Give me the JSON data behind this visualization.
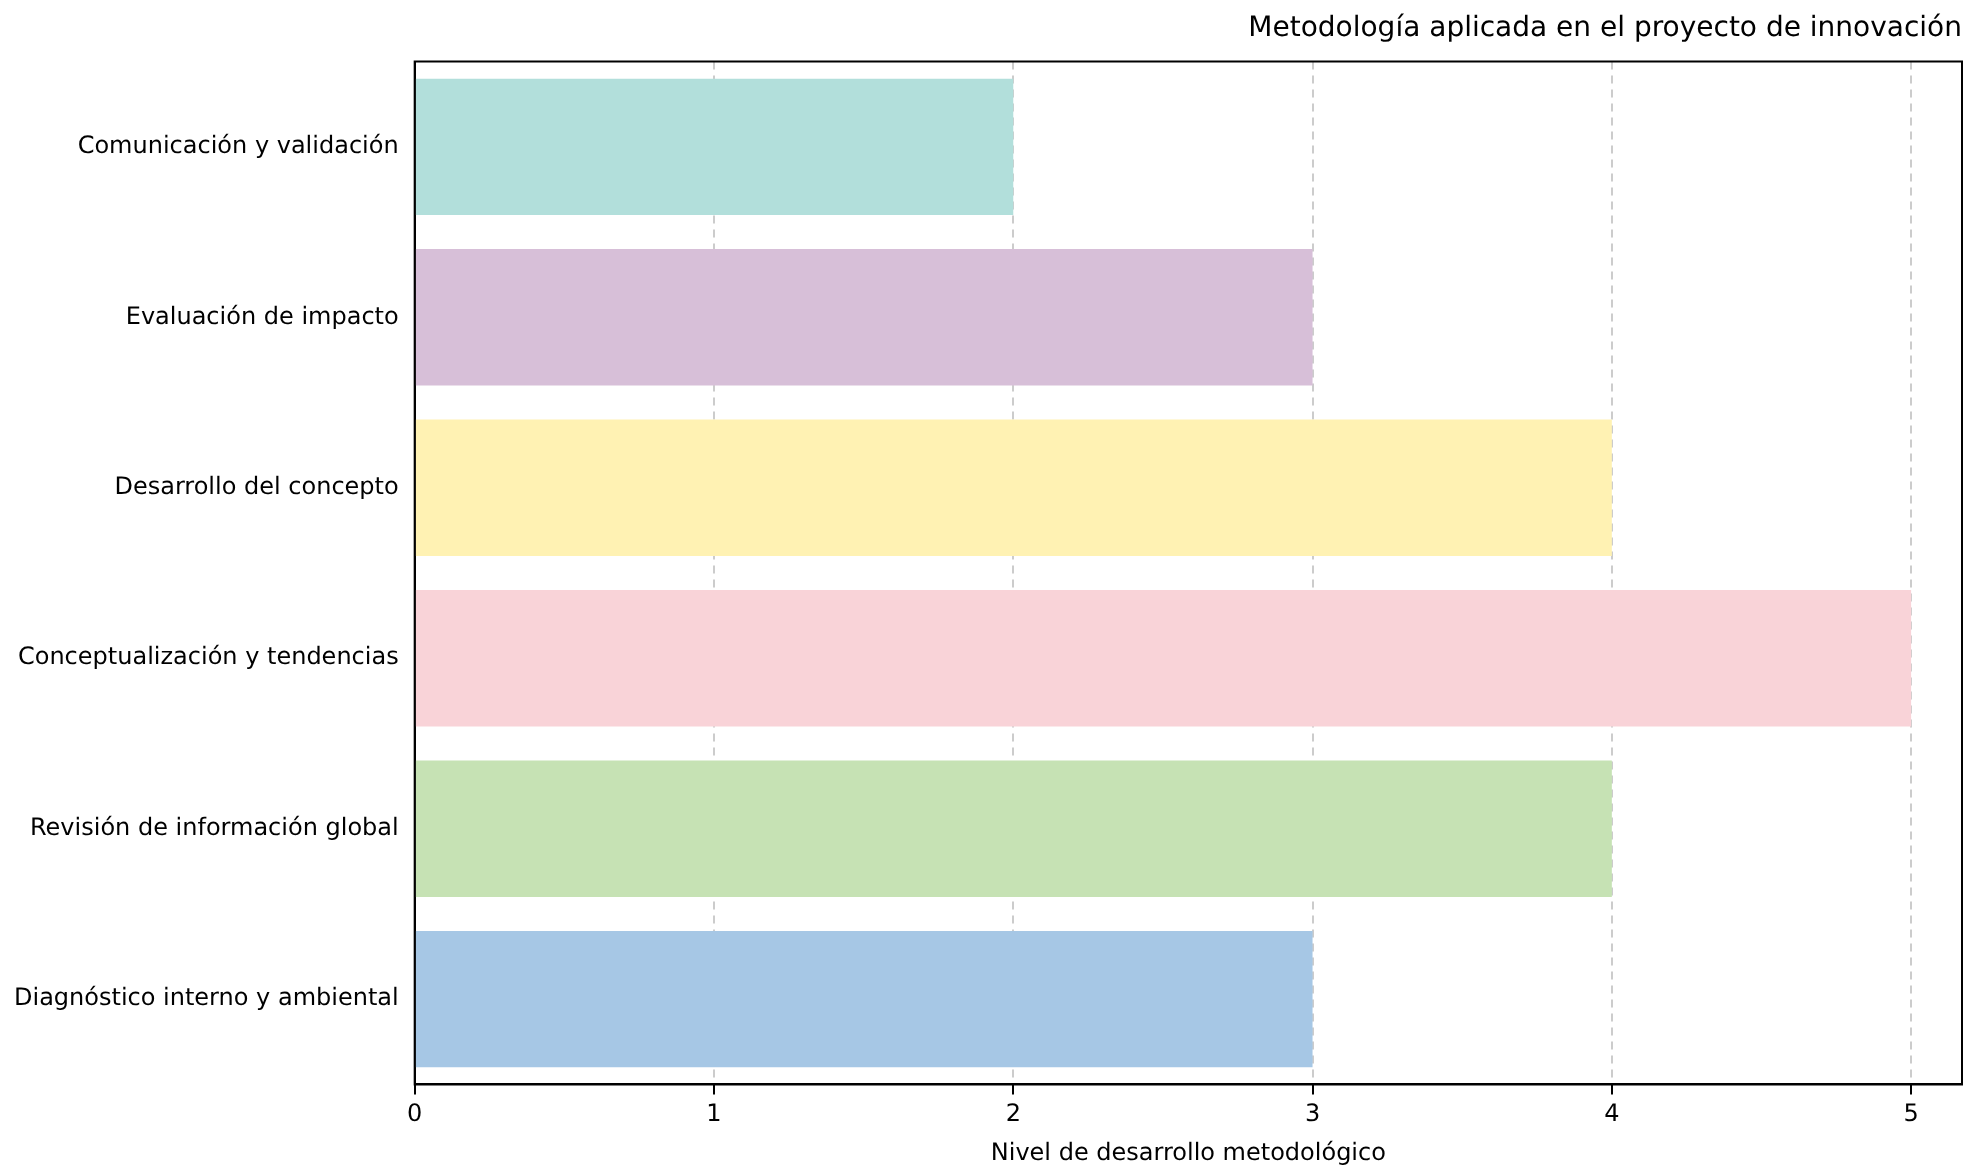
{
  "chart_data": {
    "type": "bar",
    "orientation": "horizontal",
    "title": "Metodología aplicada en el proyecto de innovación",
    "xlabel": "Nivel de desarrollo metodológico",
    "categories": [
      "Comunicación y validación",
      "Evaluación de impacto",
      "Desarrollo del concepto",
      "Conceptualización y tendencias",
      "Revisión de información global",
      "Diagnóstico interno y ambiental"
    ],
    "values": [
      2,
      3,
      4,
      5,
      4,
      3
    ],
    "colors": [
      "#b2dfdb",
      "#d7bfd8",
      "#fff2b3",
      "#f9d3d8",
      "#c6e2b4",
      "#a6c7e5"
    ],
    "xlim": [
      0,
      5.17
    ],
    "xticks": [
      0,
      1,
      2,
      3,
      4,
      5
    ],
    "grid": "x",
    "legend": false
  }
}
